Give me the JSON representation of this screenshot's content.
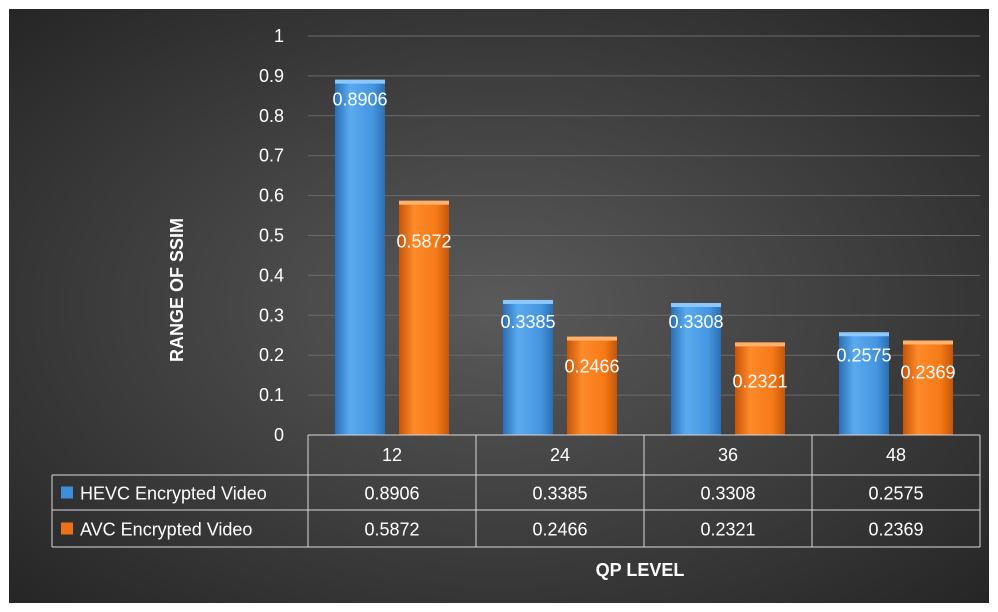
{
  "chart_data": {
    "type": "bar",
    "categories": [
      "12",
      "24",
      "36",
      "48"
    ],
    "series": [
      {
        "name": "HEVC Encrypted Video",
        "values": [
          0.8906,
          0.3385,
          0.3308,
          0.2575
        ],
        "color": "#3d8fdc"
      },
      {
        "name": "AVC Encrypted Video",
        "values": [
          0.5872,
          0.2466,
          0.2321,
          0.2369
        ],
        "color": "#f07018"
      }
    ],
    "data_labels": [
      [
        "0.8906",
        "0.3385",
        "0.3308",
        "0.2575"
      ],
      [
        "0.5872",
        "0.2466",
        "0.2321",
        "0.2369"
      ]
    ],
    "yticks": [
      "0",
      "0.1",
      "0.2",
      "0.3",
      "0.4",
      "0.5",
      "0.6",
      "0.7",
      "0.8",
      "0.9",
      "1"
    ],
    "xlabel": "QP LEVEL",
    "ylabel": "RANGE OF SSIM",
    "ylim": [
      0,
      1
    ],
    "grid": true,
    "legend": "data-table"
  }
}
